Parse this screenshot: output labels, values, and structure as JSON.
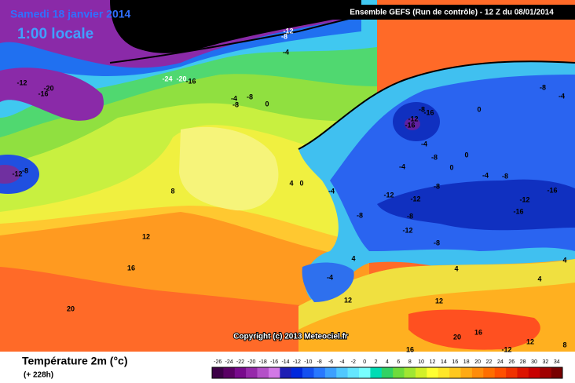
{
  "header": {
    "date": "Samedi 18 janvier 2014",
    "time": "1:00 locale",
    "model": "Ensemble GEFS (Run de contrôle)  -  12 Z du 08/01/2014"
  },
  "copyright": "Copyright (c) 2013 Meteociel.fr",
  "map_labels": [
    "-12",
    "-8",
    "-4",
    "-24",
    "-20",
    "-16",
    "-12",
    "-20",
    "-16",
    "-4",
    "-8",
    "0",
    "-8",
    "8",
    "12",
    "16",
    "20",
    "-12",
    "-8",
    "4",
    "0",
    "-4",
    "-8",
    "-12",
    "-16",
    "-16",
    "-4",
    "-8",
    "0",
    "0",
    "-4",
    "-8",
    "-12",
    "-12",
    "-8",
    "-8",
    "-12",
    "-8",
    "4",
    "-4",
    "-16",
    "-12",
    "-16",
    "-4",
    "-8",
    "-4",
    "0",
    "-8",
    "12",
    "12",
    "20",
    "16",
    "16",
    "-12",
    "12",
    "4",
    "4",
    "8",
    "4"
  ],
  "legend": {
    "title": "Température 2m (°c)",
    "subtitle": "(+ 228h)",
    "ticks": [
      -26,
      -24,
      -22,
      -20,
      -18,
      -16,
      -14,
      -12,
      -10,
      -8,
      -6,
      -4,
      -2,
      0,
      2,
      4,
      6,
      8,
      10,
      12,
      14,
      16,
      18,
      20,
      22,
      24,
      26,
      28,
      30,
      32,
      34
    ],
    "colors": [
      "#3c0046",
      "#5a0064",
      "#780a8c",
      "#9628aa",
      "#b450c8",
      "#d278e6",
      "#1e1eb4",
      "#0028dc",
      "#1450f0",
      "#2878ff",
      "#3ca0ff",
      "#50c8ff",
      "#64e6ff",
      "#78ffff",
      "#00dcb4",
      "#32d264",
      "#6edc3c",
      "#a0e632",
      "#d2f028",
      "#ffff32",
      "#ffe628",
      "#ffc81e",
      "#ffaa14",
      "#ff8c0a",
      "#ff6e00",
      "#ff5000",
      "#f03200",
      "#dc1400",
      "#c80000",
      "#a00000",
      "#780000"
    ]
  }
}
